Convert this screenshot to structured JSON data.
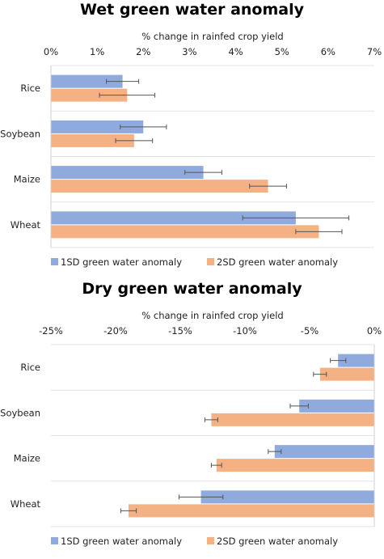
{
  "chart_data": [
    {
      "type": "bar",
      "orientation": "horizontal",
      "title": "Wet green water anomaly",
      "xlabel": "% change in rainfed crop yield",
      "xlim": [
        0,
        7
      ],
      "x_ticks": [
        "0%",
        "1%",
        "2%",
        "3%",
        "4%",
        "5%",
        "6%",
        "7%"
      ],
      "x_axis_position": "top",
      "categories": [
        "Rice",
        "Soybean",
        "Maize",
        "Wheat"
      ],
      "series": [
        {
          "name": "1SD green water anomaly",
          "color": "#8faadc",
          "values": [
            1.55,
            2.0,
            3.3,
            5.3
          ],
          "error": [
            0.35,
            0.5,
            0.4,
            1.15
          ]
        },
        {
          "name": "2SD green water anomaly",
          "color": "#f4b183",
          "values": [
            1.65,
            1.8,
            4.7,
            5.8
          ],
          "error": [
            0.6,
            0.4,
            0.4,
            0.5
          ]
        }
      ],
      "legend_position": "bottom",
      "grid": "horizontal separators"
    },
    {
      "type": "bar",
      "orientation": "horizontal",
      "title": "Dry green water anomaly",
      "xlabel": "% change in rainfed crop yield",
      "xlim": [
        -25,
        0
      ],
      "x_ticks": [
        "-25%",
        "-20%",
        "-15%",
        "-10%",
        "-5%",
        "0%"
      ],
      "x_axis_position": "top",
      "categories": [
        "Rice",
        "Soybean",
        "Maize",
        "Wheat"
      ],
      "series": [
        {
          "name": "1SD green water anomaly",
          "color": "#8faadc",
          "values": [
            -2.8,
            -5.8,
            -7.7,
            -13.4
          ],
          "error": [
            0.6,
            0.7,
            0.5,
            1.7
          ]
        },
        {
          "name": "2SD green water anomaly",
          "color": "#f4b183",
          "values": [
            -4.2,
            -12.6,
            -12.2,
            -19.0
          ],
          "error": [
            0.5,
            0.5,
            0.4,
            0.6
          ]
        }
      ],
      "legend_position": "bottom",
      "grid": "horizontal separators"
    }
  ]
}
